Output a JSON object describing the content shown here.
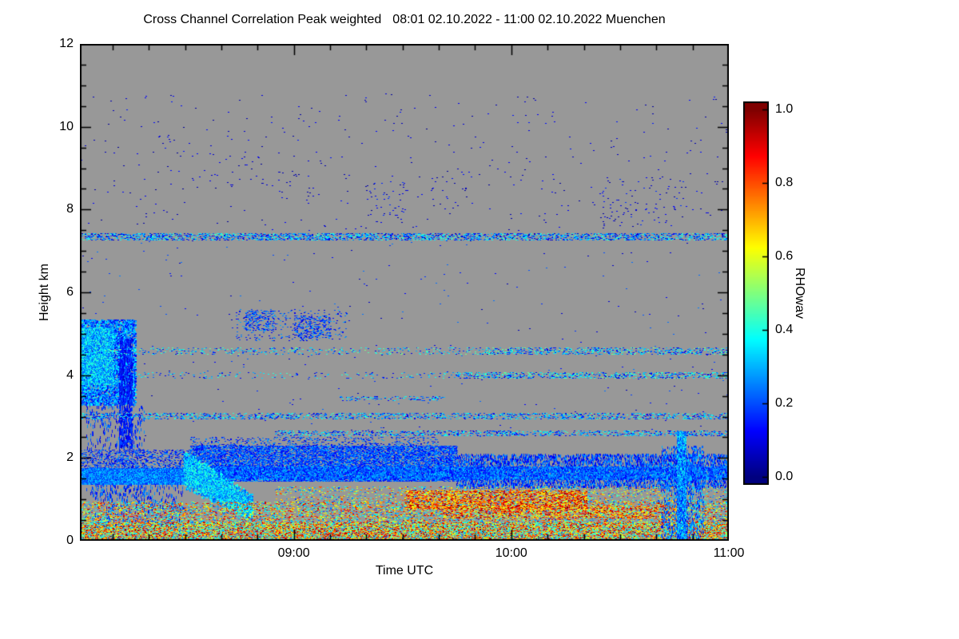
{
  "chart_data": {
    "type": "heatmap",
    "title": "Cross Channel Correlation Peak weighted",
    "title_range": "08:01 02.10.2022 - 11:00 02.10.2022 Muenchen",
    "xlabel": "Time UTC",
    "ylabel": "Height km",
    "plot_bg": "#989898",
    "frame_color": "#000000",
    "x_start_minute": 481,
    "x_end_minute": 660,
    "x_minor_step_minutes": 10,
    "x_ticks": [
      {
        "label": "09:00",
        "minute": 540
      },
      {
        "label": "10:00",
        "minute": 600
      },
      {
        "label": "11:00",
        "minute": 660
      }
    ],
    "ylim": [
      0,
      12
    ],
    "y_major_step": 2,
    "y_minor_step": 0.5,
    "y_ticks": [
      "0",
      "2",
      "4",
      "6",
      "8",
      "10",
      "12"
    ],
    "colorbar": {
      "label": "RHOwav",
      "min": 0.0,
      "max": 1.0,
      "ticks": [
        {
          "label": "1.0",
          "value": 1.0
        },
        {
          "label": "0.8",
          "value": 0.8
        },
        {
          "label": "0.6",
          "value": 0.6
        },
        {
          "label": "0.4",
          "value": 0.4
        },
        {
          "label": "0.2",
          "value": 0.2
        },
        {
          "label": "0.0",
          "value": 0.0
        }
      ]
    },
    "seed": 20221002,
    "features": [
      {
        "name": "upper-sparse",
        "t": [
          0,
          1
        ],
        "h": [
          7.5,
          10.8
        ],
        "d": 0.0025,
        "v": [
          0.02,
          0.15
        ],
        "dw": 2,
        "dh": 1
      },
      {
        "name": "upper-cluster-1",
        "t": [
          0.115,
          0.135
        ],
        "h": [
          9.5,
          9.8
        ],
        "d": 0.02,
        "v": [
          0.03,
          0.15
        ],
        "dw": 2,
        "dh": 1
      },
      {
        "name": "upper-cluster-2",
        "t": [
          0.2,
          0.28
        ],
        "h": [
          8.6,
          9.4
        ],
        "d": 0.008,
        "v": [
          0.03,
          0.15
        ],
        "dw": 2,
        "dh": 1
      },
      {
        "name": "upper-cluster-3",
        "t": [
          0.3,
          0.37
        ],
        "h": [
          8.2,
          9.0
        ],
        "d": 0.008,
        "v": [
          0.03,
          0.15
        ],
        "dw": 2,
        "dh": 1
      },
      {
        "name": "upper-cluster-4",
        "t": [
          0.44,
          0.5
        ],
        "h": [
          7.7,
          8.7
        ],
        "d": 0.02,
        "v": [
          0.03,
          0.18
        ],
        "dw": 2,
        "dh": 1
      },
      {
        "name": "upper-cluster-5",
        "t": [
          0.54,
          0.6
        ],
        "h": [
          8.0,
          8.8
        ],
        "d": 0.012,
        "v": [
          0.03,
          0.15
        ],
        "dw": 2,
        "dh": 1
      },
      {
        "name": "upper-cluster-6",
        "t": [
          0.8,
          0.93
        ],
        "h": [
          7.6,
          8.8
        ],
        "d": 0.014,
        "v": [
          0.03,
          0.18
        ],
        "dw": 2,
        "dh": 1
      },
      {
        "name": "line-7km",
        "t": [
          0,
          1
        ],
        "h": [
          7.28,
          7.42
        ],
        "d": 0.3,
        "v": [
          0.05,
          0.45
        ],
        "dw": 2,
        "dh": 1
      },
      {
        "name": "mid-sparse",
        "t": [
          0,
          1
        ],
        "h": [
          2.5,
          7.25
        ],
        "d": 0.0012,
        "v": [
          0.05,
          0.25
        ],
        "dw": 2,
        "dh": 1
      },
      {
        "name": "blob-left",
        "t": [
          0,
          0.085
        ],
        "h": [
          3.3,
          5.35
        ],
        "d": 0.45,
        "v": [
          0.1,
          0.38
        ],
        "dw": 2,
        "dh": 2
      },
      {
        "name": "blob-left-core",
        "t": [
          0,
          0.05
        ],
        "h": [
          3.8,
          5.15
        ],
        "d": 0.9,
        "v": [
          0.18,
          0.45
        ],
        "dw": 2,
        "dh": 2
      },
      {
        "name": "blob-left-tail",
        "t": [
          0.01,
          0.1
        ],
        "h": [
          1.0,
          3.3
        ],
        "d": 0.05,
        "v": [
          0.08,
          0.28
        ],
        "dw": 1,
        "dh": 4
      },
      {
        "name": "streaks-left",
        "t": [
          0.06,
          0.08
        ],
        "h": [
          2.3,
          4.9
        ],
        "d": 0.25,
        "v": [
          0.06,
          0.22
        ],
        "dw": 1,
        "dh": 5
      },
      {
        "name": "patch-5km-a",
        "t": [
          0.255,
          0.3
        ],
        "h": [
          5.1,
          5.55
        ],
        "d": 0.22,
        "v": [
          0.08,
          0.3
        ],
        "dw": 2,
        "dh": 1
      },
      {
        "name": "patch-5km-b",
        "t": [
          0.33,
          0.385
        ],
        "h": [
          4.9,
          5.45
        ],
        "d": 0.22,
        "v": [
          0.08,
          0.3
        ],
        "dw": 2,
        "dh": 1
      },
      {
        "name": "patch-5km-sparse",
        "t": [
          0.24,
          0.41
        ],
        "h": [
          4.85,
          5.6
        ],
        "d": 0.05,
        "v": [
          0.08,
          0.3
        ],
        "dw": 2,
        "dh": 1
      },
      {
        "name": "hline-4p6",
        "t": [
          0,
          1
        ],
        "h": [
          4.52,
          4.66
        ],
        "d": 0.1,
        "v": [
          0.08,
          0.5
        ],
        "dw": 2,
        "dh": 1
      },
      {
        "name": "hline-4p6-dense",
        "t": [
          0.62,
          1
        ],
        "h": [
          4.52,
          4.66
        ],
        "d": 0.15,
        "v": [
          0.08,
          0.5
        ],
        "dw": 2,
        "dh": 1
      },
      {
        "name": "hline-4p0",
        "t": [
          0.58,
          1
        ],
        "h": [
          3.93,
          4.07
        ],
        "d": 0.25,
        "v": [
          0.08,
          0.5
        ],
        "dw": 2,
        "dh": 1
      },
      {
        "name": "hline-4p0-sparse",
        "t": [
          0,
          0.58
        ],
        "h": [
          3.93,
          4.07
        ],
        "d": 0.05,
        "v": [
          0.08,
          0.45
        ],
        "dw": 2,
        "dh": 1
      },
      {
        "name": "hline-3p45",
        "t": [
          0.4,
          0.56
        ],
        "h": [
          3.4,
          3.5
        ],
        "d": 0.12,
        "v": [
          0.08,
          0.4
        ],
        "dw": 2,
        "dh": 1
      },
      {
        "name": "hline-3p0",
        "t": [
          0,
          1
        ],
        "h": [
          2.95,
          3.08
        ],
        "d": 0.22,
        "v": [
          0.08,
          0.45
        ],
        "dw": 2,
        "dh": 1
      },
      {
        "name": "hline-2p6",
        "t": [
          0.3,
          1
        ],
        "h": [
          2.54,
          2.67
        ],
        "d": 0.22,
        "v": [
          0.08,
          0.45
        ],
        "dw": 2,
        "dh": 1
      },
      {
        "name": "band-top-scatter",
        "t": [
          0.17,
          0.55
        ],
        "h": [
          2.25,
          2.5
        ],
        "d": 0.13,
        "v": [
          0.08,
          0.3
        ],
        "dw": 2,
        "dh": 1
      },
      {
        "name": "band-left-solid",
        "t": [
          0,
          0.17
        ],
        "h": [
          1.38,
          1.75
        ],
        "d": 0.92,
        "v": [
          0.15,
          0.35
        ],
        "dw": 2,
        "dh": 2
      },
      {
        "name": "band-left-top",
        "t": [
          0,
          0.17
        ],
        "h": [
          1.75,
          2.2
        ],
        "d": 0.22,
        "v": [
          0.08,
          0.28
        ],
        "dw": 2,
        "dh": 1
      },
      {
        "name": "band-mid",
        "t": [
          0.17,
          0.58
        ],
        "h": [
          1.45,
          2.3
        ],
        "d": 0.55,
        "v": [
          0.1,
          0.3
        ],
        "dw": 2,
        "dh": 1
      },
      {
        "name": "band-right",
        "t": [
          0.58,
          1
        ],
        "h": [
          1.32,
          2.1
        ],
        "d": 0.3,
        "v": [
          0.08,
          0.3
        ],
        "dw": 1,
        "dh": 3
      },
      {
        "name": "band-core",
        "t": [
          0.17,
          1
        ],
        "h": [
          1.5,
          1.8
        ],
        "d": 0.5,
        "v": [
          0.12,
          0.32
        ],
        "dw": 2,
        "dh": 2
      },
      {
        "name": "bright-blob",
        "type": "diag",
        "t": [
          0.16,
          0.265
        ],
        "hc": [
          1.75,
          0.8
        ],
        "th": [
          0.5,
          0.35
        ],
        "d": 0.95,
        "v": [
          0.2,
          0.45
        ],
        "dw": 2,
        "dh": 2
      },
      {
        "name": "blue-cols-left",
        "t": [
          0.02,
          0.16
        ],
        "h": [
          0.3,
          1.38
        ],
        "d": 0.07,
        "v": [
          0.08,
          0.3
        ],
        "dw": 1,
        "dh": 4
      },
      {
        "name": "surface-dense",
        "t": [
          0,
          1
        ],
        "h": [
          0,
          0.45
        ],
        "d": 0.55,
        "v": [
          0.25,
          1.0
        ],
        "dw": 2,
        "dh": 1
      },
      {
        "name": "surface-mid",
        "t": [
          0,
          1
        ],
        "h": [
          0.45,
          0.95
        ],
        "d": 0.26,
        "v": [
          0.2,
          0.95
        ],
        "dw": 2,
        "dh": 1
      },
      {
        "name": "low-scatter",
        "t": [
          0.3,
          1
        ],
        "h": [
          0.95,
          1.32
        ],
        "d": 0.13,
        "v": [
          0.15,
          0.85
        ],
        "dw": 2,
        "dh": 1
      },
      {
        "name": "orange-streak",
        "t": [
          0.5,
          0.78
        ],
        "h": [
          0.78,
          1.22
        ],
        "d": 0.38,
        "v": [
          0.55,
          1.0
        ],
        "dw": 2,
        "dh": 1
      },
      {
        "name": "orange-streak2",
        "t": [
          0.56,
          0.92
        ],
        "h": [
          0.55,
          0.85
        ],
        "d": 0.28,
        "v": [
          0.5,
          1.0
        ],
        "dw": 2,
        "dh": 1
      },
      {
        "name": "vstreak-right",
        "t": [
          0.92,
          0.934
        ],
        "h": [
          0,
          2.65
        ],
        "d": 0.85,
        "v": [
          0.15,
          0.42
        ],
        "dw": 1,
        "dh": 2
      },
      {
        "name": "vstreak-right-halo",
        "t": [
          0.895,
          0.96
        ],
        "h": [
          0,
          2.3
        ],
        "d": 0.15,
        "v": [
          0.1,
          0.35
        ],
        "dw": 1,
        "dh": 3
      }
    ]
  }
}
